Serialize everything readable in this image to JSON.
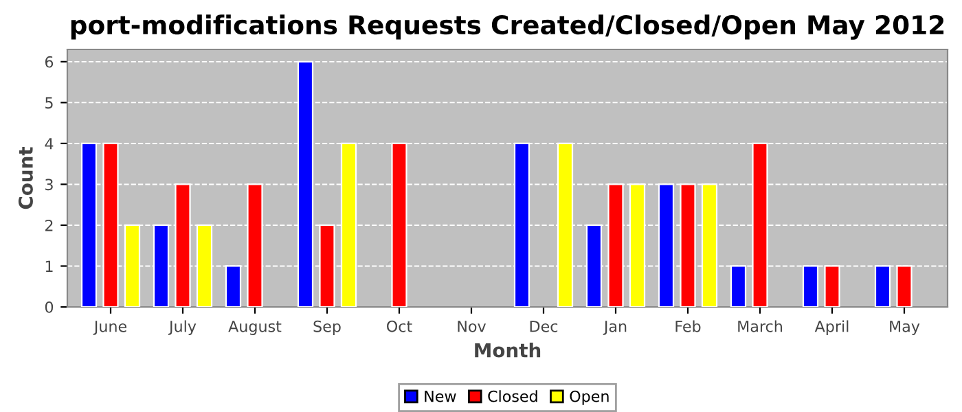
{
  "chart_data": {
    "type": "bar",
    "title": "port-modifications Requests Created/Closed/Open May 2012",
    "xlabel": "Month",
    "ylabel": "Count",
    "categories": [
      "June",
      "July",
      "August",
      "Sep",
      "Oct",
      "Nov",
      "Dec",
      "Jan",
      "Feb",
      "March",
      "April",
      "May"
    ],
    "series": [
      {
        "name": "New",
        "color": "#0000ff",
        "values": [
          4,
          2,
          1,
          6,
          0,
          0,
          4,
          2,
          3,
          1,
          1,
          1
        ]
      },
      {
        "name": "Closed",
        "color": "#ff0000",
        "values": [
          4,
          3,
          3,
          2,
          4,
          0,
          0,
          3,
          3,
          4,
          1,
          1
        ]
      },
      {
        "name": "Open",
        "color": "#ffff00",
        "values": [
          2,
          2,
          0,
          4,
          0,
          0,
          4,
          3,
          3,
          0,
          0,
          0
        ]
      }
    ],
    "ylim": [
      0,
      6.3
    ],
    "yticks": [
      0,
      1,
      2,
      3,
      4,
      5,
      6
    ],
    "grid": "y",
    "legend": "bottom"
  }
}
